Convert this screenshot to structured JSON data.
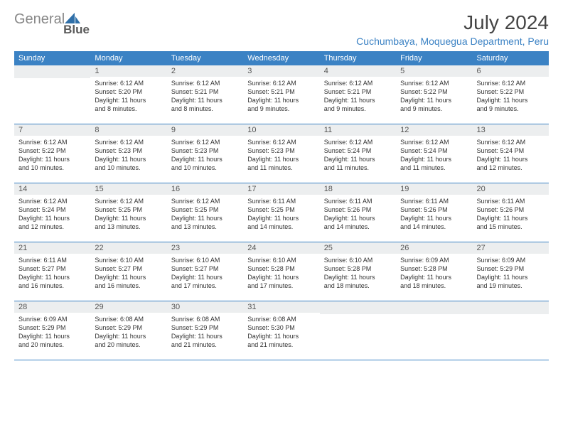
{
  "brand": {
    "part1": "General",
    "part2": "Blue"
  },
  "title": "July 2024",
  "location": "Cuchumbaya, Moquegua Department, Peru",
  "colors": {
    "accent": "#3b82c4",
    "header_bg": "#3b82c4",
    "daynum_bg": "#eceeef",
    "text": "#333333"
  },
  "table": {
    "type": "calendar",
    "columns": [
      "Sunday",
      "Monday",
      "Tuesday",
      "Wednesday",
      "Thursday",
      "Friday",
      "Saturday"
    ],
    "cell_fontsize": 9,
    "header_fontsize": 11,
    "weeks": [
      [
        {
          "n": "",
          "l1": "",
          "l2": "",
          "l3": "",
          "l4": ""
        },
        {
          "n": "1",
          "l1": "Sunrise: 6:12 AM",
          "l2": "Sunset: 5:20 PM",
          "l3": "Daylight: 11 hours",
          "l4": "and 8 minutes."
        },
        {
          "n": "2",
          "l1": "Sunrise: 6:12 AM",
          "l2": "Sunset: 5:21 PM",
          "l3": "Daylight: 11 hours",
          "l4": "and 8 minutes."
        },
        {
          "n": "3",
          "l1": "Sunrise: 6:12 AM",
          "l2": "Sunset: 5:21 PM",
          "l3": "Daylight: 11 hours",
          "l4": "and 9 minutes."
        },
        {
          "n": "4",
          "l1": "Sunrise: 6:12 AM",
          "l2": "Sunset: 5:21 PM",
          "l3": "Daylight: 11 hours",
          "l4": "and 9 minutes."
        },
        {
          "n": "5",
          "l1": "Sunrise: 6:12 AM",
          "l2": "Sunset: 5:22 PM",
          "l3": "Daylight: 11 hours",
          "l4": "and 9 minutes."
        },
        {
          "n": "6",
          "l1": "Sunrise: 6:12 AM",
          "l2": "Sunset: 5:22 PM",
          "l3": "Daylight: 11 hours",
          "l4": "and 9 minutes."
        }
      ],
      [
        {
          "n": "7",
          "l1": "Sunrise: 6:12 AM",
          "l2": "Sunset: 5:22 PM",
          "l3": "Daylight: 11 hours",
          "l4": "and 10 minutes."
        },
        {
          "n": "8",
          "l1": "Sunrise: 6:12 AM",
          "l2": "Sunset: 5:23 PM",
          "l3": "Daylight: 11 hours",
          "l4": "and 10 minutes."
        },
        {
          "n": "9",
          "l1": "Sunrise: 6:12 AM",
          "l2": "Sunset: 5:23 PM",
          "l3": "Daylight: 11 hours",
          "l4": "and 10 minutes."
        },
        {
          "n": "10",
          "l1": "Sunrise: 6:12 AM",
          "l2": "Sunset: 5:23 PM",
          "l3": "Daylight: 11 hours",
          "l4": "and 11 minutes."
        },
        {
          "n": "11",
          "l1": "Sunrise: 6:12 AM",
          "l2": "Sunset: 5:24 PM",
          "l3": "Daylight: 11 hours",
          "l4": "and 11 minutes."
        },
        {
          "n": "12",
          "l1": "Sunrise: 6:12 AM",
          "l2": "Sunset: 5:24 PM",
          "l3": "Daylight: 11 hours",
          "l4": "and 11 minutes."
        },
        {
          "n": "13",
          "l1": "Sunrise: 6:12 AM",
          "l2": "Sunset: 5:24 PM",
          "l3": "Daylight: 11 hours",
          "l4": "and 12 minutes."
        }
      ],
      [
        {
          "n": "14",
          "l1": "Sunrise: 6:12 AM",
          "l2": "Sunset: 5:24 PM",
          "l3": "Daylight: 11 hours",
          "l4": "and 12 minutes."
        },
        {
          "n": "15",
          "l1": "Sunrise: 6:12 AM",
          "l2": "Sunset: 5:25 PM",
          "l3": "Daylight: 11 hours",
          "l4": "and 13 minutes."
        },
        {
          "n": "16",
          "l1": "Sunrise: 6:12 AM",
          "l2": "Sunset: 5:25 PM",
          "l3": "Daylight: 11 hours",
          "l4": "and 13 minutes."
        },
        {
          "n": "17",
          "l1": "Sunrise: 6:11 AM",
          "l2": "Sunset: 5:25 PM",
          "l3": "Daylight: 11 hours",
          "l4": "and 14 minutes."
        },
        {
          "n": "18",
          "l1": "Sunrise: 6:11 AM",
          "l2": "Sunset: 5:26 PM",
          "l3": "Daylight: 11 hours",
          "l4": "and 14 minutes."
        },
        {
          "n": "19",
          "l1": "Sunrise: 6:11 AM",
          "l2": "Sunset: 5:26 PM",
          "l3": "Daylight: 11 hours",
          "l4": "and 14 minutes."
        },
        {
          "n": "20",
          "l1": "Sunrise: 6:11 AM",
          "l2": "Sunset: 5:26 PM",
          "l3": "Daylight: 11 hours",
          "l4": "and 15 minutes."
        }
      ],
      [
        {
          "n": "21",
          "l1": "Sunrise: 6:11 AM",
          "l2": "Sunset: 5:27 PM",
          "l3": "Daylight: 11 hours",
          "l4": "and 16 minutes."
        },
        {
          "n": "22",
          "l1": "Sunrise: 6:10 AM",
          "l2": "Sunset: 5:27 PM",
          "l3": "Daylight: 11 hours",
          "l4": "and 16 minutes."
        },
        {
          "n": "23",
          "l1": "Sunrise: 6:10 AM",
          "l2": "Sunset: 5:27 PM",
          "l3": "Daylight: 11 hours",
          "l4": "and 17 minutes."
        },
        {
          "n": "24",
          "l1": "Sunrise: 6:10 AM",
          "l2": "Sunset: 5:28 PM",
          "l3": "Daylight: 11 hours",
          "l4": "and 17 minutes."
        },
        {
          "n": "25",
          "l1": "Sunrise: 6:10 AM",
          "l2": "Sunset: 5:28 PM",
          "l3": "Daylight: 11 hours",
          "l4": "and 18 minutes."
        },
        {
          "n": "26",
          "l1": "Sunrise: 6:09 AM",
          "l2": "Sunset: 5:28 PM",
          "l3": "Daylight: 11 hours",
          "l4": "and 18 minutes."
        },
        {
          "n": "27",
          "l1": "Sunrise: 6:09 AM",
          "l2": "Sunset: 5:29 PM",
          "l3": "Daylight: 11 hours",
          "l4": "and 19 minutes."
        }
      ],
      [
        {
          "n": "28",
          "l1": "Sunrise: 6:09 AM",
          "l2": "Sunset: 5:29 PM",
          "l3": "Daylight: 11 hours",
          "l4": "and 20 minutes."
        },
        {
          "n": "29",
          "l1": "Sunrise: 6:08 AM",
          "l2": "Sunset: 5:29 PM",
          "l3": "Daylight: 11 hours",
          "l4": "and 20 minutes."
        },
        {
          "n": "30",
          "l1": "Sunrise: 6:08 AM",
          "l2": "Sunset: 5:29 PM",
          "l3": "Daylight: 11 hours",
          "l4": "and 21 minutes."
        },
        {
          "n": "31",
          "l1": "Sunrise: 6:08 AM",
          "l2": "Sunset: 5:30 PM",
          "l3": "Daylight: 11 hours",
          "l4": "and 21 minutes."
        },
        {
          "n": "",
          "l1": "",
          "l2": "",
          "l3": "",
          "l4": ""
        },
        {
          "n": "",
          "l1": "",
          "l2": "",
          "l3": "",
          "l4": ""
        },
        {
          "n": "",
          "l1": "",
          "l2": "",
          "l3": "",
          "l4": ""
        }
      ]
    ]
  }
}
